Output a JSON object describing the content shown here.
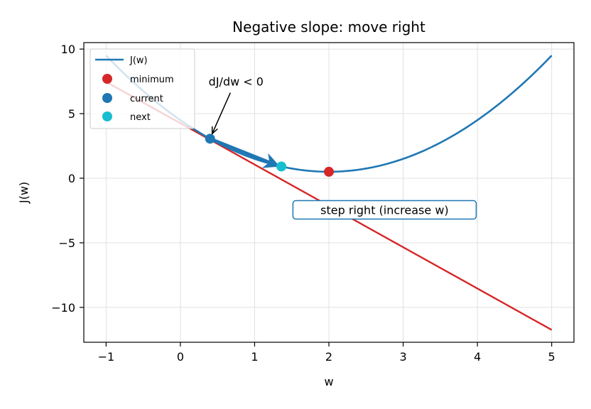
{
  "chart_data": {
    "type": "line",
    "title": "Negative slope: move right",
    "xlabel": "w",
    "ylabel": "J(w)",
    "xlim": [
      -1.3,
      5.3
    ],
    "ylim": [
      -12.7,
      10.5
    ],
    "xticks": [
      -1,
      0,
      1,
      2,
      3,
      4,
      5
    ],
    "yticks": [
      -10,
      -5,
      0,
      5,
      10
    ],
    "xtick_labels": [
      "−1",
      "0",
      "1",
      "2",
      "3",
      "4",
      "5"
    ],
    "ytick_labels": [
      "−10",
      "−5",
      "0",
      "5",
      "10"
    ],
    "grid": true,
    "legend_position": "top-left",
    "curve": {
      "name": "J(w)",
      "formula": "(w - 2)^2 + 0.5",
      "x_range": [
        -1,
        5
      ],
      "color": "#1f77b4"
    },
    "tangent_line": {
      "x": [
        -1,
        5
      ],
      "y": [
        7.46,
        -11.74
      ],
      "color": "#d62728"
    },
    "points": [
      {
        "name": "minimum",
        "x": 2.0,
        "y": 0.5,
        "color": "#d62728"
      },
      {
        "name": "current",
        "x": 0.4,
        "y": 3.06,
        "color": "#1f77b4"
      },
      {
        "name": "next",
        "x": 1.36,
        "y": 0.91,
        "color": "#17becf"
      }
    ],
    "step_arrow": {
      "from": [
        0.4,
        3.06
      ],
      "to": [
        1.3,
        1.0
      ],
      "color": "#1f77b4"
    },
    "annotations": [
      {
        "text": "dJ/dw < 0",
        "x": 0.75,
        "y": 7.5,
        "points_to": [
          0.4,
          3.06
        ]
      },
      {
        "text": "step right (increase w)",
        "x": 2.75,
        "y": -2.45,
        "boxed": true,
        "box_color": "#1f77b4"
      }
    ]
  }
}
